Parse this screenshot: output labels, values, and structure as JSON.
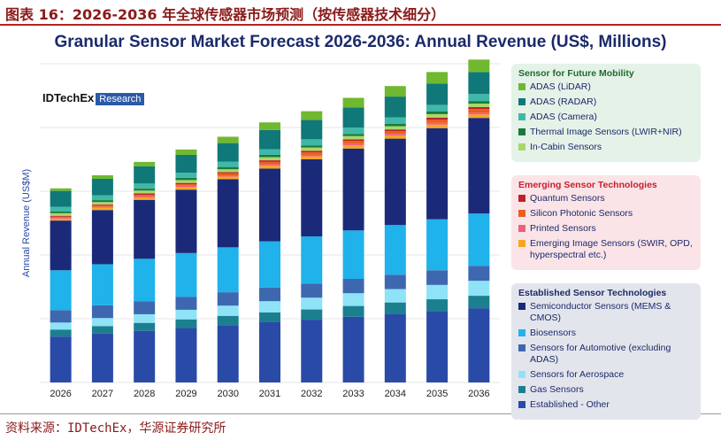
{
  "caption": "图表 16：2026-2036 年全球传感器市场预测（按传感器技术细分）",
  "source": "资料来源：IDTechEx，华源证券研究所",
  "logo": {
    "brand": "IDTechEx",
    "tag": "Research"
  },
  "chart_data": {
    "type": "bar",
    "stacked": true,
    "title": "Granular Sensor Market Forecast 2026-2036: Annual Revenue (US$, Millions)",
    "y_label": "Annual Revenue (US$M)",
    "categories": [
      "2026",
      "2027",
      "2028",
      "2029",
      "2030",
      "2031",
      "2032",
      "2033",
      "2034",
      "2035",
      "2036"
    ],
    "ylim": [
      0,
      100
    ],
    "gridlines": [
      0,
      20,
      40,
      60,
      80,
      100
    ],
    "grid": true,
    "legend_groups": [
      {
        "title": "Sensor for Future Mobility",
        "title_color": "#1e6b2e",
        "background": "#e5f2e8"
      },
      {
        "title": "Emerging Sensor Technologies",
        "title_color": "#c4202e",
        "background": "#fbe4e7"
      },
      {
        "title": "Established Sensor Technologies",
        "title_color": "#1b2a6b",
        "background": "#e3e5ec"
      }
    ],
    "series": [
      {
        "name": "Established - Other",
        "group": 2,
        "color": "#2a4aa8",
        "values": [
          14.4,
          15.3,
          16.2,
          17.1,
          18.0,
          18.9,
          19.7,
          20.6,
          21.5,
          22.4,
          23.3
        ]
      },
      {
        "name": "Gas Sensors",
        "group": 2,
        "color": "#1b7f90",
        "values": [
          2.2,
          2.4,
          2.5,
          2.7,
          2.9,
          3.1,
          3.2,
          3.4,
          3.6,
          3.7,
          3.9
        ]
      },
      {
        "name": "Sensors for Aerospace",
        "group": 2,
        "color": "#8fe3f7",
        "values": [
          2.2,
          2.5,
          2.7,
          3.0,
          3.2,
          3.5,
          3.7,
          4.0,
          4.2,
          4.5,
          4.7
        ]
      },
      {
        "name": "Sensors for Automotive (excluding ADAS)",
        "group": 2,
        "color": "#3d68b0",
        "values": [
          3.9,
          4.0,
          4.1,
          4.1,
          4.2,
          4.3,
          4.4,
          4.5,
          4.5,
          4.6,
          4.7
        ]
      },
      {
        "name": "Biosensors",
        "group": 2,
        "color": "#20b2ea",
        "values": [
          12.5,
          12.9,
          13.3,
          13.7,
          14.1,
          14.5,
          14.8,
          15.2,
          15.6,
          16.0,
          16.4
        ]
      },
      {
        "name": "Semiconductor Sensors (MEMS & CMOS)",
        "group": 2,
        "color": "#1b2a78",
        "values": [
          15.6,
          17.0,
          18.5,
          19.9,
          21.4,
          22.8,
          24.2,
          25.7,
          27.1,
          28.6,
          30.0
        ]
      },
      {
        "name": "Emerging Image Sensors (SWIR, OPD, hyperspectral etc.)",
        "group": 1,
        "color": "#f5a623",
        "values": [
          0.6,
          0.7,
          0.7,
          0.8,
          0.8,
          0.9,
          0.9,
          1.0,
          1.0,
          1.1,
          1.1
        ]
      },
      {
        "name": "Printed Sensors",
        "group": 1,
        "color": "#f0607a",
        "values": [
          0.3,
          0.3,
          0.4,
          0.4,
          0.4,
          0.5,
          0.5,
          0.5,
          0.5,
          0.6,
          0.6
        ]
      },
      {
        "name": "Silicon Photonic Sensors",
        "group": 1,
        "color": "#e8601c",
        "values": [
          0.3,
          0.4,
          0.5,
          0.5,
          0.6,
          0.7,
          0.8,
          0.9,
          0.9,
          1.0,
          1.1
        ]
      },
      {
        "name": "Quantum Sensors",
        "group": 1,
        "color": "#c0202a",
        "values": [
          0.3,
          0.3,
          0.4,
          0.4,
          0.4,
          0.5,
          0.5,
          0.5,
          0.5,
          0.6,
          0.6
        ]
      },
      {
        "name": "In-Cabin Sensors",
        "group": 0,
        "color": "#a8d86a",
        "values": [
          0.8,
          0.8,
          0.9,
          0.9,
          0.9,
          1.0,
          1.0,
          1.0,
          1.0,
          1.1,
          1.1
        ]
      },
      {
        "name": "Thermal Image Sensors (LWIR+NIR)",
        "group": 0,
        "color": "#1a7a3a",
        "values": [
          0.6,
          0.6,
          0.6,
          0.7,
          0.7,
          0.7,
          0.7,
          0.7,
          0.8,
          0.8,
          0.8
        ]
      },
      {
        "name": "ADAS (Camera)",
        "group": 0,
        "color": "#40b8a8",
        "values": [
          1.4,
          1.5,
          1.6,
          1.6,
          1.7,
          1.8,
          1.9,
          2.0,
          2.0,
          2.1,
          2.2
        ]
      },
      {
        "name": "ADAS (RADAR)",
        "group": 0,
        "color": "#107878",
        "values": [
          5.0,
          5.2,
          5.4,
          5.6,
          5.8,
          6.0,
          6.1,
          6.3,
          6.5,
          6.7,
          6.9
        ]
      },
      {
        "name": "ADAS (LiDAR)",
        "group": 0,
        "color": "#70b830",
        "values": [
          0.8,
          1.1,
          1.4,
          1.7,
          2.0,
          2.4,
          2.7,
          3.0,
          3.3,
          3.6,
          3.9
        ]
      }
    ]
  }
}
